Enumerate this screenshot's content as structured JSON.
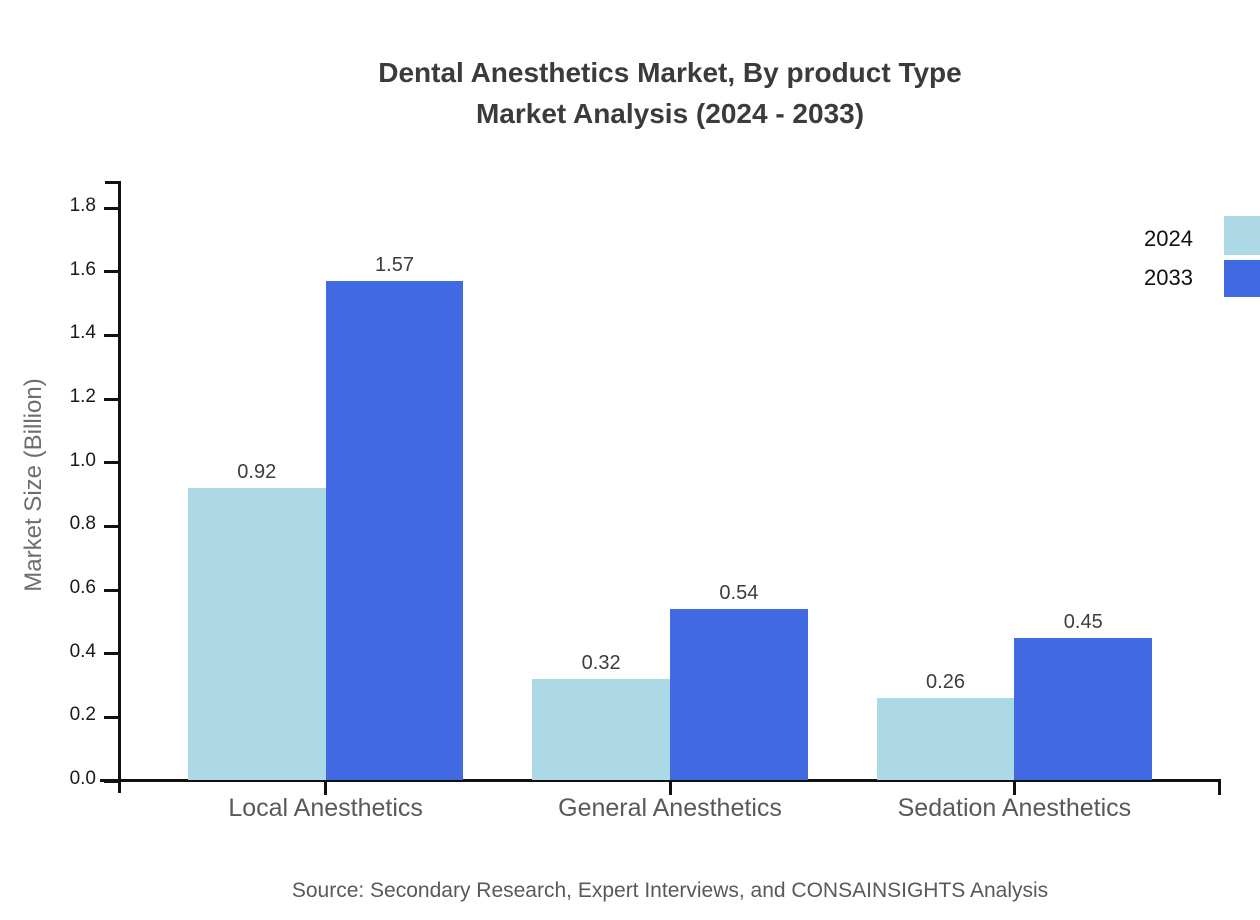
{
  "chart_data": {
    "type": "bar",
    "title_line1": "Dental Anesthetics Market, By product Type",
    "title_line2": "Market Analysis (2024 - 2033)",
    "categories": [
      "Local Anesthetics",
      "General Anesthetics",
      "Sedation Anesthetics"
    ],
    "series": [
      {
        "name": "2024",
        "color": "#ADD8E6",
        "values": [
          0.92,
          0.32,
          0.26
        ]
      },
      {
        "name": "2033",
        "color": "#4169E1",
        "values": [
          1.57,
          0.54,
          0.45
        ]
      }
    ],
    "value_labels": [
      [
        "0.92",
        "0.32",
        "0.26"
      ],
      [
        "1.57",
        "0.54",
        "0.45"
      ]
    ],
    "xlabel": "",
    "ylabel": "Market Size (Billion)",
    "ylim": [
      0.0,
      1.8
    ],
    "ytick_step": 0.2,
    "yticks": [
      "0.0",
      "0.2",
      "0.4",
      "0.6",
      "0.8",
      "1.0",
      "1.2",
      "1.4",
      "1.6",
      "1.8"
    ],
    "grid": false,
    "legend_position": "upper-right-outside",
    "legend": [
      {
        "label": "2024",
        "color": "#ADD8E6"
      },
      {
        "label": "2033",
        "color": "#4169E1"
      }
    ],
    "source": "Source: Secondary Research, Expert Interviews, and CONSAINSIGHTS Analysis"
  },
  "colors": {
    "background": "#FFFFFF",
    "axis": "#111111",
    "title_text": "#3B3B3B",
    "tick_text": "#1A1A1A",
    "category_text": "#595959",
    "value_text": "#3D3D3D",
    "ylabel_text": "#6E6E6E",
    "source_text": "#595959",
    "series_2024": "#ADD8E6",
    "series_2033": "#4169E1"
  }
}
